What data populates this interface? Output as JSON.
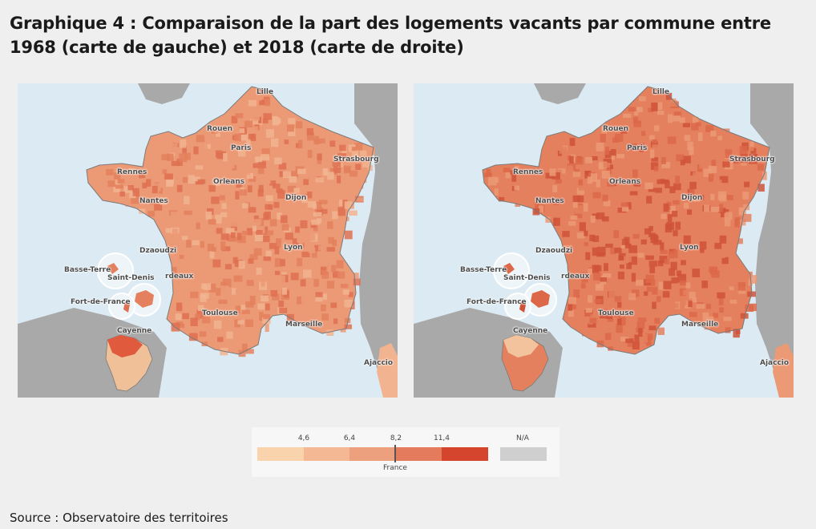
{
  "title": "Graphique 4 : Comparaison de la part des logements vacants par commune entre 1968 (carte de gauche) et 2018 (carte de droite)",
  "maps": [
    {
      "year": "1968",
      "position": "left",
      "cities": [
        "Lille",
        "Rouen",
        "Paris",
        "Strasbourg",
        "Rennes",
        "Orleans",
        "Nantes",
        "Dijon",
        "Dzaoudzi",
        "Lyon",
        "Basse-Terre",
        "Saint-Denis",
        "rdeaux",
        "Fort-de-France",
        "Toulouse",
        "Marseille",
        "Cayenne",
        "Ajaccio"
      ],
      "fill_colors": [
        "#f2b490",
        "#ec9a76",
        "#e4805d",
        "#de7051"
      ],
      "guyane_colors": [
        "#e05a3e",
        "#f0c099"
      ]
    },
    {
      "year": "2018",
      "position": "right",
      "cities": [
        "Lille",
        "Rouen",
        "Paris",
        "Strasbourg",
        "Rennes",
        "Orleans",
        "Nantes",
        "Dijon",
        "Dzaoudzi",
        "Lyon",
        "Basse-Terre",
        "Saint-Denis",
        "rdeaux",
        "Fort-de-France",
        "Toulouse",
        "Marseille",
        "Cayenne",
        "Ajaccio"
      ],
      "fill_colors": [
        "#ec9a76",
        "#e4805d",
        "#dc6849",
        "#cf5238"
      ],
      "guyane_colors": [
        "#f2c39d",
        "#e4805d"
      ]
    }
  ],
  "legend": {
    "thresholds": [
      "4,6",
      "6,4",
      "8,2",
      "11,4"
    ],
    "classes": [
      {
        "color": "#f9d3ab"
      },
      {
        "color": "#f4b994"
      },
      {
        "color": "#eda07d"
      },
      {
        "color": "#e47b5c"
      },
      {
        "color": "#d5452d"
      }
    ],
    "reference_label": "France",
    "reference_value": "8,2",
    "na_label": "N/A",
    "na_color": "#cfcfcf"
  },
  "source": "Source : Observatoire des territoires",
  "colors": {
    "sea": "#dcebf3",
    "neighbour_land": "#a9a9a9",
    "borders": "#7a7a7a"
  }
}
